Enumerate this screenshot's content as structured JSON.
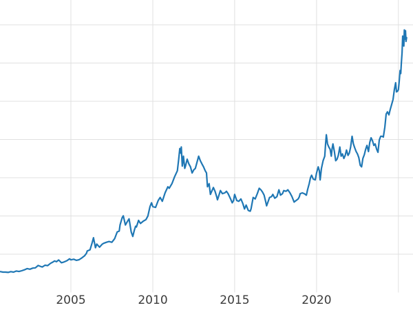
{
  "figure": {
    "background": "#ffffff"
  },
  "chart_data": {
    "type": "line",
    "title": "",
    "xlabel": "",
    "ylabel": "",
    "grid": true,
    "legend": "none",
    "line_color": "#1f77b4",
    "line_width": 2.2,
    "grid_color": "#e0e0e0",
    "tick_color": "#3b3b3b",
    "xlim": [
      2000.67,
      2025.89
    ],
    "ylim": [
      0,
      3824
    ],
    "x_ticks": [
      {
        "value": 2005,
        "label": "2005"
      },
      {
        "value": 2010,
        "label": "2010"
      },
      {
        "value": 2015,
        "label": "2015"
      },
      {
        "value": 2020,
        "label": "2020"
      }
    ],
    "x_gridlines": [
      2005,
      2010,
      2015,
      2020,
      2025
    ],
    "y_gridlines": [
      500,
      1000,
      1500,
      2000,
      2500,
      3000,
      3500
    ],
    "series": [
      {
        "name": "",
        "points": [
          [
            2000.7,
            272
          ],
          [
            2000.85,
            266
          ],
          [
            2001.0,
            266
          ],
          [
            2001.17,
            262
          ],
          [
            2001.33,
            272
          ],
          [
            2001.5,
            266
          ],
          [
            2001.67,
            280
          ],
          [
            2001.83,
            274
          ],
          [
            2002.0,
            284
          ],
          [
            2002.17,
            296
          ],
          [
            2002.33,
            312
          ],
          [
            2002.5,
            304
          ],
          [
            2002.67,
            318
          ],
          [
            2002.83,
            322
          ],
          [
            2003.0,
            352
          ],
          [
            2003.12,
            342
          ],
          [
            2003.25,
            332
          ],
          [
            2003.42,
            356
          ],
          [
            2003.58,
            350
          ],
          [
            2003.75,
            380
          ],
          [
            2003.92,
            400
          ],
          [
            2004.0,
            412
          ],
          [
            2004.12,
            402
          ],
          [
            2004.25,
            424
          ],
          [
            2004.42,
            388
          ],
          [
            2004.58,
            398
          ],
          [
            2004.75,
            414
          ],
          [
            2004.92,
            440
          ],
          [
            2005.0,
            426
          ],
          [
            2005.17,
            434
          ],
          [
            2005.33,
            420
          ],
          [
            2005.5,
            428
          ],
          [
            2005.67,
            452
          ],
          [
            2005.83,
            478
          ],
          [
            2005.95,
            512
          ],
          [
            2006.0,
            542
          ],
          [
            2006.17,
            558
          ],
          [
            2006.3,
            650
          ],
          [
            2006.38,
            715
          ],
          [
            2006.5,
            585
          ],
          [
            2006.58,
            632
          ],
          [
            2006.75,
            592
          ],
          [
            2006.92,
            632
          ],
          [
            2007.0,
            642
          ],
          [
            2007.17,
            656
          ],
          [
            2007.33,
            666
          ],
          [
            2007.5,
            656
          ],
          [
            2007.67,
            702
          ],
          [
            2007.83,
            792
          ],
          [
            2007.95,
            802
          ],
          [
            2008.0,
            882
          ],
          [
            2008.13,
            978
          ],
          [
            2008.2,
            1002
          ],
          [
            2008.33,
            882
          ],
          [
            2008.45,
            928
          ],
          [
            2008.55,
            962
          ],
          [
            2008.68,
            792
          ],
          [
            2008.78,
            732
          ],
          [
            2008.88,
            818
          ],
          [
            2008.95,
            866
          ],
          [
            2009.0,
            856
          ],
          [
            2009.13,
            942
          ],
          [
            2009.25,
            902
          ],
          [
            2009.42,
            932
          ],
          [
            2009.58,
            952
          ],
          [
            2009.7,
            998
          ],
          [
            2009.83,
            1122
          ],
          [
            2009.92,
            1172
          ],
          [
            2010.0,
            1122
          ],
          [
            2010.17,
            1112
          ],
          [
            2010.33,
            1202
          ],
          [
            2010.45,
            1242
          ],
          [
            2010.58,
            1192
          ],
          [
            2010.75,
            1302
          ],
          [
            2010.92,
            1382
          ],
          [
            2011.0,
            1362
          ],
          [
            2011.17,
            1422
          ],
          [
            2011.33,
            1512
          ],
          [
            2011.5,
            1592
          ],
          [
            2011.58,
            1742
          ],
          [
            2011.65,
            1882
          ],
          [
            2011.7,
            1822
          ],
          [
            2011.74,
            1902
          ],
          [
            2011.8,
            1652
          ],
          [
            2011.87,
            1782
          ],
          [
            2011.95,
            1622
          ],
          [
            2012.0,
            1652
          ],
          [
            2012.1,
            1742
          ],
          [
            2012.2,
            1682
          ],
          [
            2012.3,
            1642
          ],
          [
            2012.4,
            1562
          ],
          [
            2012.5,
            1602
          ],
          [
            2012.6,
            1622
          ],
          [
            2012.7,
            1702
          ],
          [
            2012.8,
            1782
          ],
          [
            2012.9,
            1722
          ],
          [
            2013.0,
            1682
          ],
          [
            2013.1,
            1642
          ],
          [
            2013.2,
            1592
          ],
          [
            2013.28,
            1562
          ],
          [
            2013.34,
            1382
          ],
          [
            2013.44,
            1422
          ],
          [
            2013.52,
            1282
          ],
          [
            2013.6,
            1322
          ],
          [
            2013.7,
            1372
          ],
          [
            2013.8,
            1322
          ],
          [
            2013.9,
            1252
          ],
          [
            2013.95,
            1212
          ],
          [
            2014.0,
            1242
          ],
          [
            2014.13,
            1332
          ],
          [
            2014.25,
            1292
          ],
          [
            2014.4,
            1302
          ],
          [
            2014.5,
            1322
          ],
          [
            2014.6,
            1292
          ],
          [
            2014.75,
            1222
          ],
          [
            2014.85,
            1172
          ],
          [
            2014.93,
            1202
          ],
          [
            2015.0,
            1282
          ],
          [
            2015.13,
            1202
          ],
          [
            2015.25,
            1192
          ],
          [
            2015.38,
            1222
          ],
          [
            2015.5,
            1162
          ],
          [
            2015.6,
            1092
          ],
          [
            2015.7,
            1142
          ],
          [
            2015.83,
            1072
          ],
          [
            2015.95,
            1062
          ],
          [
            2016.0,
            1092
          ],
          [
            2016.13,
            1242
          ],
          [
            2016.25,
            1222
          ],
          [
            2016.38,
            1292
          ],
          [
            2016.5,
            1362
          ],
          [
            2016.6,
            1342
          ],
          [
            2016.7,
            1312
          ],
          [
            2016.8,
            1272
          ],
          [
            2016.9,
            1182
          ],
          [
            2016.95,
            1132
          ],
          [
            2017.0,
            1162
          ],
          [
            2017.13,
            1242
          ],
          [
            2017.25,
            1252
          ],
          [
            2017.33,
            1282
          ],
          [
            2017.45,
            1232
          ],
          [
            2017.58,
            1252
          ],
          [
            2017.7,
            1342
          ],
          [
            2017.8,
            1272
          ],
          [
            2017.92,
            1292
          ],
          [
            2018.0,
            1332
          ],
          [
            2018.13,
            1322
          ],
          [
            2018.25,
            1342
          ],
          [
            2018.38,
            1302
          ],
          [
            2018.5,
            1252
          ],
          [
            2018.63,
            1182
          ],
          [
            2018.75,
            1202
          ],
          [
            2018.88,
            1222
          ],
          [
            2018.95,
            1252
          ],
          [
            2019.0,
            1292
          ],
          [
            2019.13,
            1302
          ],
          [
            2019.25,
            1292
          ],
          [
            2019.38,
            1272
          ],
          [
            2019.45,
            1342
          ],
          [
            2019.55,
            1422
          ],
          [
            2019.63,
            1502
          ],
          [
            2019.7,
            1532
          ],
          [
            2019.8,
            1482
          ],
          [
            2019.92,
            1472
          ],
          [
            2020.0,
            1562
          ],
          [
            2020.1,
            1642
          ],
          [
            2020.17,
            1592
          ],
          [
            2020.22,
            1472
          ],
          [
            2020.3,
            1622
          ],
          [
            2020.4,
            1722
          ],
          [
            2020.5,
            1782
          ],
          [
            2020.55,
            1942
          ],
          [
            2020.6,
            2062
          ],
          [
            2020.67,
            1942
          ],
          [
            2020.75,
            1902
          ],
          [
            2020.83,
            1872
          ],
          [
            2020.9,
            1782
          ],
          [
            2020.95,
            1882
          ],
          [
            2021.0,
            1942
          ],
          [
            2021.08,
            1852
          ],
          [
            2021.17,
            1722
          ],
          [
            2021.25,
            1742
          ],
          [
            2021.33,
            1792
          ],
          [
            2021.42,
            1902
          ],
          [
            2021.5,
            1782
          ],
          [
            2021.58,
            1812
          ],
          [
            2021.67,
            1752
          ],
          [
            2021.75,
            1792
          ],
          [
            2021.83,
            1862
          ],
          [
            2021.92,
            1792
          ],
          [
            2022.0,
            1822
          ],
          [
            2022.08,
            1902
          ],
          [
            2022.17,
            2042
          ],
          [
            2022.25,
            1942
          ],
          [
            2022.33,
            1892
          ],
          [
            2022.42,
            1842
          ],
          [
            2022.5,
            1812
          ],
          [
            2022.58,
            1762
          ],
          [
            2022.67,
            1662
          ],
          [
            2022.75,
            1642
          ],
          [
            2022.83,
            1752
          ],
          [
            2022.92,
            1802
          ],
          [
            2023.0,
            1872
          ],
          [
            2023.08,
            1922
          ],
          [
            2023.17,
            1842
          ],
          [
            2023.25,
            1962
          ],
          [
            2023.33,
            2022
          ],
          [
            2023.42,
            1982
          ],
          [
            2023.5,
            1922
          ],
          [
            2023.58,
            1942
          ],
          [
            2023.67,
            1872
          ],
          [
            2023.75,
            1832
          ],
          [
            2023.83,
            1992
          ],
          [
            2023.92,
            2042
          ],
          [
            2024.0,
            2042
          ],
          [
            2024.08,
            2032
          ],
          [
            2024.17,
            2162
          ],
          [
            2024.25,
            2332
          ],
          [
            2024.33,
            2362
          ],
          [
            2024.42,
            2322
          ],
          [
            2024.5,
            2392
          ],
          [
            2024.58,
            2452
          ],
          [
            2024.67,
            2522
          ],
          [
            2024.75,
            2652
          ],
          [
            2024.83,
            2742
          ],
          [
            2024.88,
            2622
          ],
          [
            2024.95,
            2632
          ],
          [
            2025.0,
            2652
          ],
          [
            2025.05,
            2762
          ],
          [
            2025.1,
            2902
          ],
          [
            2025.14,
            2862
          ],
          [
            2025.18,
            3002
          ],
          [
            2025.22,
            3132
          ],
          [
            2025.26,
            3352
          ],
          [
            2025.3,
            3242
          ],
          [
            2025.33,
            3222
          ],
          [
            2025.36,
            3432
          ],
          [
            2025.4,
            3312
          ],
          [
            2025.43,
            3422
          ],
          [
            2025.46,
            3282
          ],
          [
            2025.5,
            3332
          ]
        ]
      }
    ]
  }
}
